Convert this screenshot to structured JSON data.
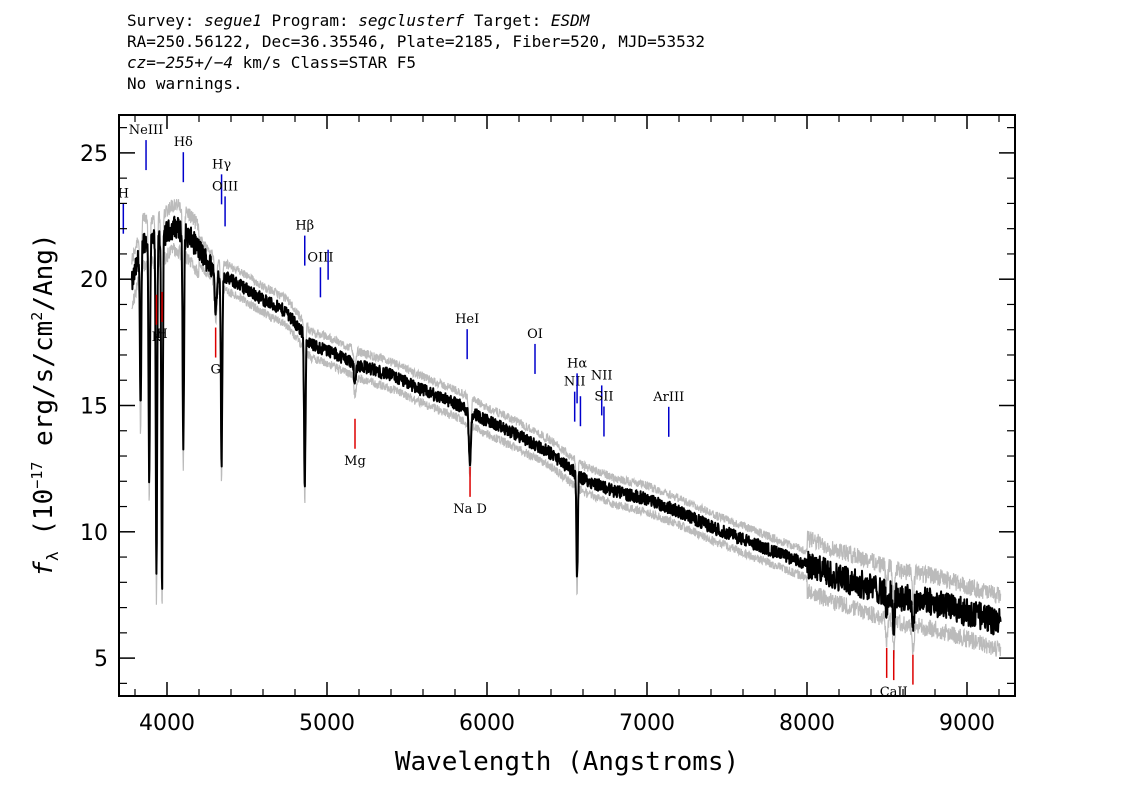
{
  "header": {
    "survey_label": "Survey:",
    "survey": "segue1",
    "program_label": "Program:",
    "program": "segclusterf",
    "target_label": "Target:",
    "target": "ESDM",
    "line2": "RA=250.56122, Dec=36.35546, Plate=2185, Fiber=520, MJD=53532",
    "cz": "cz=−255+/−4",
    "cz_rest": " km/s Class=STAR F5",
    "warnings": "No warnings."
  },
  "colors": {
    "flux": "#000000",
    "error": "#bbbbbb",
    "emission": "#0000cc",
    "absorption": "#dd0000"
  },
  "chart_data": {
    "type": "line",
    "xlabel": "Wavelength (Angstroms)",
    "ylabel_parts": [
      "f",
      "λ",
      " (10",
      "−17",
      " erg/s/cm",
      "2",
      "/Ang)"
    ],
    "xlim": [
      3700,
      9300
    ],
    "ylim": [
      3.5,
      26.5
    ],
    "x_ticks": [
      4000,
      5000,
      6000,
      7000,
      8000,
      9000
    ],
    "y_ticks": [
      5,
      10,
      15,
      20,
      25
    ],
    "continuum": [
      [
        3780,
        19.8
      ],
      [
        3850,
        21.5
      ],
      [
        3950,
        21.6
      ],
      [
        4050,
        22.1
      ],
      [
        4150,
        21.6
      ],
      [
        4300,
        20.3
      ],
      [
        4450,
        19.8
      ],
      [
        4600,
        19.2
      ],
      [
        4750,
        18.7
      ],
      [
        4900,
        17.4
      ],
      [
        5000,
        17.2
      ],
      [
        5200,
        16.6
      ],
      [
        5400,
        16.2
      ],
      [
        5600,
        15.6
      ],
      [
        5800,
        15.1
      ],
      [
        6000,
        14.4
      ],
      [
        6200,
        13.8
      ],
      [
        6400,
        13.1
      ],
      [
        6600,
        12.1
      ],
      [
        6800,
        11.6
      ],
      [
        7000,
        11.3
      ],
      [
        7200,
        10.8
      ],
      [
        7400,
        10.2
      ],
      [
        7600,
        9.7
      ],
      [
        7800,
        9.2
      ],
      [
        8000,
        8.7
      ],
      [
        8200,
        8.2
      ],
      [
        8400,
        7.8
      ],
      [
        8600,
        7.4
      ],
      [
        8800,
        7.2
      ],
      [
        9000,
        6.8
      ],
      [
        9210,
        6.4
      ]
    ],
    "absorption_features": [
      {
        "x": 3835,
        "depth": 6.5
      },
      {
        "x": 3889,
        "depth": 9.5
      },
      {
        "x": 3934,
        "depth": 13.5
      },
      {
        "x": 3969,
        "depth": 14.0
      },
      {
        "x": 4102,
        "depth": 8.8
      },
      {
        "x": 4305,
        "depth": 1.5
      },
      {
        "x": 4341,
        "depth": 7.7
      },
      {
        "x": 4861,
        "depth": 6.2
      },
      {
        "x": 5175,
        "depth": 0.8
      },
      {
        "x": 5893,
        "depth": 2.0
      },
      {
        "x": 6563,
        "depth": 4.2
      },
      {
        "x": 8498,
        "depth": 0.8
      },
      {
        "x": 8542,
        "depth": 1.2
      },
      {
        "x": 8662,
        "depth": 1.0
      }
    ],
    "emission_lines": [
      {
        "label": "H",
        "x": 3727
      },
      {
        "label": "NeIII",
        "x": 3869
      },
      {
        "label": "Hδ",
        "x": 4102
      },
      {
        "label": "Hγ",
        "x": 4341
      },
      {
        "label": "OIII",
        "x": 4363
      },
      {
        "label": "Hβ",
        "x": 4861
      },
      {
        "label": "OIII",
        "x": 4959
      },
      {
        "label": "",
        "x": 5007
      },
      {
        "label": "HeI",
        "x": 5876
      },
      {
        "label": "OI",
        "x": 6300
      },
      {
        "label": "NII",
        "x": 6548
      },
      {
        "label": "Hα",
        "x": 6563
      },
      {
        "label": "",
        "x": 6584
      },
      {
        "label": "NII",
        "x": 6717
      },
      {
        "label": "SII",
        "x": 6731
      },
      {
        "label": "ArIII",
        "x": 7136
      }
    ],
    "absorption_lines": [
      {
        "label": "K",
        "x": 3934
      },
      {
        "label": "H",
        "x": 3969
      },
      {
        "label": "G",
        "x": 4304
      },
      {
        "label": "Mg",
        "x": 5175
      },
      {
        "label": "Na D",
        "x": 5894
      },
      {
        "label": "",
        "x": 8498
      },
      {
        "label": "CaII",
        "x": 8542
      },
      {
        "label": "",
        "x": 8662
      }
    ]
  }
}
